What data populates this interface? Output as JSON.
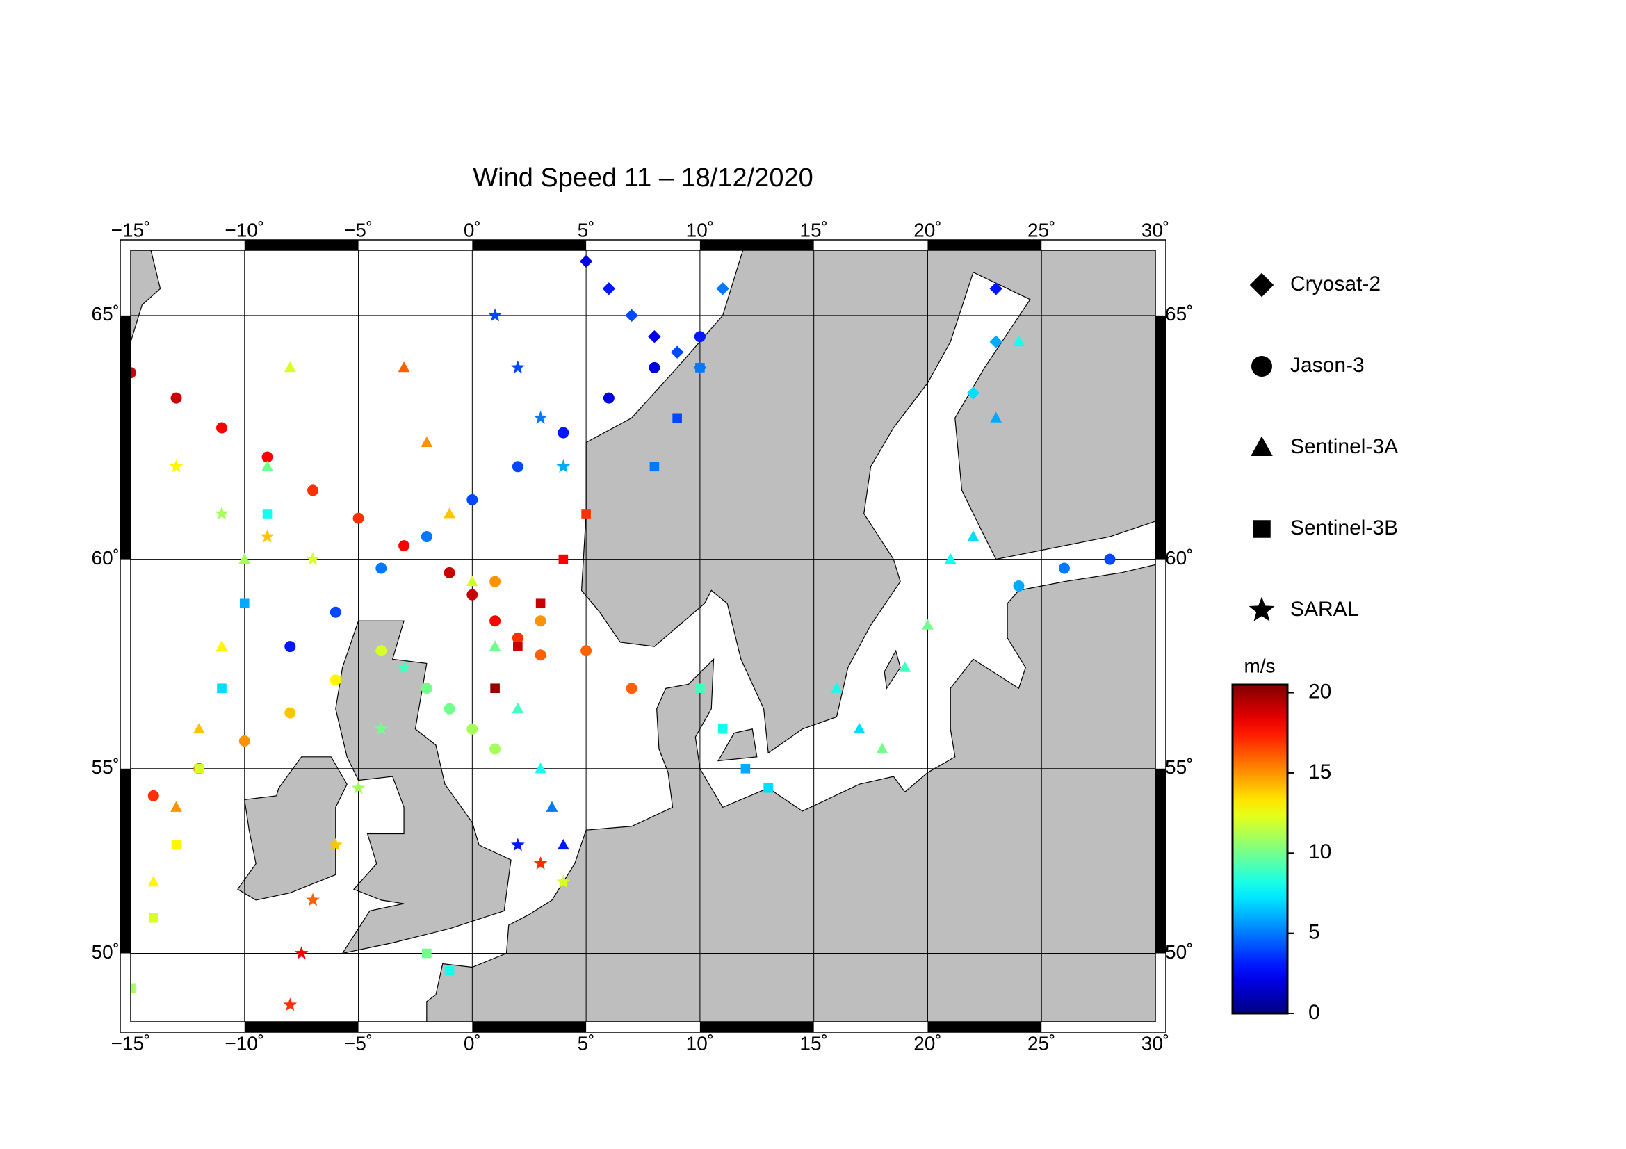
{
  "chart_data": {
    "type": "map-scatter",
    "title": "Wind Speed 11 – 18/12/2020",
    "projection": "mercator",
    "xlim": [
      -15,
      30
    ],
    "ylim": [
      48,
      66.2
    ],
    "xticks": [
      {
        "value": -15,
        "label": "−15˚"
      },
      {
        "value": -10,
        "label": "−10˚"
      },
      {
        "value": -5,
        "label": "−5˚"
      },
      {
        "value": 0,
        "label": "0˚"
      },
      {
        "value": 5,
        "label": "5˚"
      },
      {
        "value": 10,
        "label": "10˚"
      },
      {
        "value": 15,
        "label": "15˚"
      },
      {
        "value": 20,
        "label": "20˚"
      },
      {
        "value": 25,
        "label": "25˚"
      },
      {
        "value": 30,
        "label": "30˚"
      }
    ],
    "yticks": [
      {
        "value": 50,
        "label": "50˚"
      },
      {
        "value": 55,
        "label": "55˚"
      },
      {
        "value": 60,
        "label": "60˚"
      },
      {
        "value": 65,
        "label": "65˚"
      }
    ],
    "grid": true,
    "colormap": "jet",
    "colorbar_label": "m/s",
    "zlim": [
      0,
      20.5
    ],
    "zticks": [
      0,
      5,
      10,
      15,
      20
    ],
    "series": [
      {
        "name": "Cryosat-2",
        "marker": "diamond",
        "x": [
          5,
          6,
          7,
          8,
          9,
          10,
          11,
          23,
          23,
          22
        ],
        "y": [
          66,
          65.5,
          65,
          64.6,
          64.3,
          64,
          65.5,
          65.5,
          64.5,
          63.5
        ],
        "values": [
          2,
          3,
          4,
          2,
          4,
          5,
          5,
          3,
          6,
          7
        ]
      },
      {
        "name": "Jason-3",
        "marker": "circle",
        "x": [
          -15,
          -13,
          -11,
          -9,
          -7,
          -5,
          -3,
          -1,
          0,
          1,
          2,
          3,
          -8,
          -6,
          -4,
          -2,
          0,
          2,
          4,
          6,
          8,
          10,
          -14,
          -12,
          -10,
          -8,
          -6,
          -4,
          1,
          3,
          5,
          7,
          24,
          26,
          28,
          -2,
          -1,
          0,
          1
        ],
        "y": [
          63.9,
          63.4,
          62.8,
          62.2,
          61.5,
          60.9,
          60.3,
          59.7,
          59.2,
          58.6,
          58.2,
          57.8,
          58,
          58.8,
          59.8,
          60.5,
          61.3,
          62,
          62.7,
          63.4,
          64,
          64.6,
          54.3,
          55,
          55.7,
          56.4,
          57.2,
          57.9,
          59.5,
          58.6,
          57.9,
          57,
          59.4,
          59.8,
          60,
          57,
          56.5,
          56,
          55.5
        ],
        "values": [
          19,
          19,
          18,
          18,
          17,
          17,
          18,
          19,
          19,
          18,
          17,
          16,
          3,
          4,
          5,
          5,
          4,
          4,
          3,
          2,
          2,
          3,
          17,
          16,
          15,
          14,
          13,
          12,
          15,
          15,
          16,
          16,
          6,
          5,
          4,
          10,
          10,
          11,
          11
        ]
      },
      {
        "name": "Sentinel-3A",
        "marker": "triangle",
        "x": [
          -3,
          -2,
          -1,
          0,
          1,
          2,
          3,
          3.5,
          4,
          16,
          17,
          18,
          19,
          20,
          21,
          22,
          23,
          24,
          -14,
          -13,
          -12,
          -11,
          -10,
          -9,
          -8
        ],
        "y": [
          64,
          62.5,
          61,
          59.5,
          58,
          56.5,
          55,
          54,
          53,
          57,
          56,
          55.5,
          57.5,
          58.5,
          60,
          60.5,
          63,
          64.5,
          52,
          54,
          56,
          58,
          60,
          62,
          64
        ],
        "values": [
          16,
          15,
          14,
          12,
          10,
          9,
          8,
          5,
          3,
          8,
          7,
          10,
          9,
          10,
          8,
          7,
          6,
          8,
          13,
          15,
          14,
          13,
          11,
          10,
          12
        ]
      },
      {
        "name": "Sentinel-3B",
        "marker": "square",
        "x": [
          -15,
          -14,
          -13,
          -12,
          -11,
          -10,
          -9,
          1,
          2,
          3,
          4,
          5,
          8,
          9,
          10,
          10,
          11,
          12,
          13,
          -2,
          -1
        ],
        "y": [
          49,
          51,
          53,
          55,
          57,
          59,
          61,
          57,
          58,
          59,
          60,
          61,
          62,
          63,
          64,
          57,
          56,
          55,
          54.5,
          50,
          49.5
        ],
        "values": [
          11,
          12,
          13,
          12,
          7,
          6,
          8,
          20,
          19,
          19,
          18,
          17,
          5,
          4,
          5,
          9,
          8,
          6,
          7,
          10,
          8
        ]
      },
      {
        "name": "SARAL",
        "marker": "star",
        "x": [
          -8,
          -7.5,
          -7,
          -6,
          -5,
          -4,
          -3,
          1,
          2,
          3,
          4,
          2,
          3,
          4,
          -13,
          -11,
          -9,
          -7
        ],
        "y": [
          48.5,
          50,
          51.5,
          53,
          54.5,
          56,
          57.5,
          65,
          64,
          63,
          62,
          53,
          52.5,
          52,
          62,
          61,
          60.5,
          60
        ],
        "values": [
          17,
          18,
          16,
          14,
          11,
          10,
          9,
          4,
          4,
          5,
          6,
          3,
          17,
          12,
          13,
          11,
          14,
          12
        ]
      }
    ]
  }
}
